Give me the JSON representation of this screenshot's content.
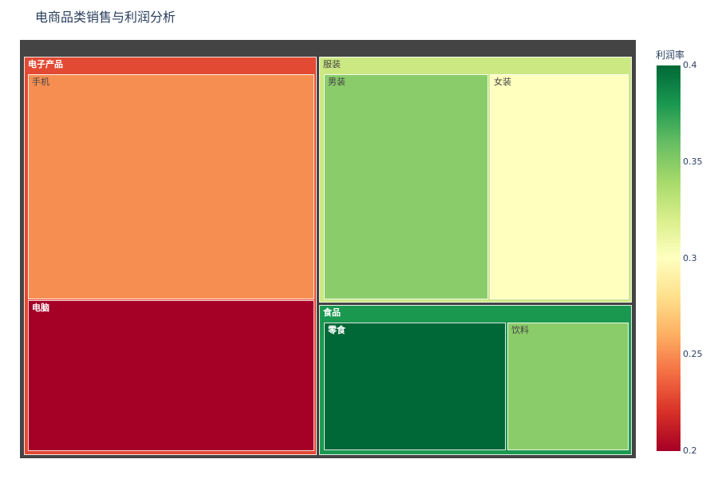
{
  "chart_data": {
    "type": "treemap",
    "title": "电商品类销售与利润分析",
    "colorbar": {
      "title": "利润率",
      "min": 0.2,
      "max": 0.4,
      "ticks": [
        "0.4",
        "0.35",
        "0.3",
        "0.25",
        "0.2"
      ],
      "colorscale": "RdYlGn",
      "colors": [
        "#006837",
        "#1a9850",
        "#66bd63",
        "#a6d96a",
        "#d9ef8b",
        "#ffffbf",
        "#fee08b",
        "#fdae61",
        "#f46d43",
        "#d73027",
        "#a50026"
      ]
    },
    "categories": [
      {
        "name": "电子产品",
        "profit_rate": 0.23,
        "color": "#e34a33",
        "children": [
          {
            "name": "手机",
            "profit_rate": 0.25,
            "color": "#f68e52"
          },
          {
            "name": "电脑",
            "profit_rate": 0.2,
            "color": "#a50026"
          }
        ]
      },
      {
        "name": "服装",
        "profit_rate": 0.33,
        "color": "#cbe883",
        "children": [
          {
            "name": "男装",
            "profit_rate": 0.35,
            "color": "#8bcc6a"
          },
          {
            "name": "女装",
            "profit_rate": 0.3,
            "color": "#ffffbe"
          }
        ]
      },
      {
        "name": "食品",
        "profit_rate": 0.38,
        "color": "#1a9850",
        "children": [
          {
            "name": "零食",
            "profit_rate": 0.4,
            "color": "#006837"
          },
          {
            "name": "饮料",
            "profit_rate": 0.35,
            "color": "#8bcc6a"
          }
        ]
      }
    ]
  }
}
